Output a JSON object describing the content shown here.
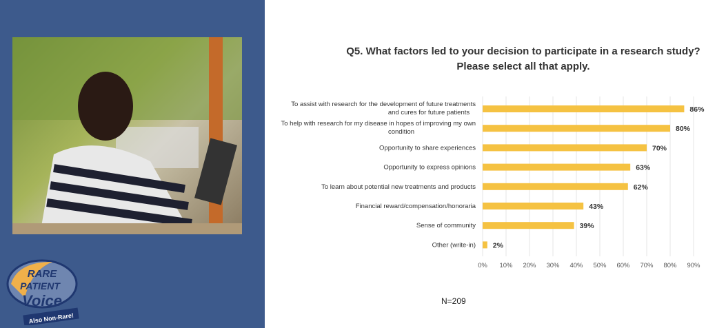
{
  "slide": {
    "title_line1": "Q5. What factors led to your decision to participate in a research study?",
    "title_line2": "Please select all that apply.",
    "sample_size": "N=209"
  },
  "logo": {
    "text": "RARE PATIENT Voice",
    "tagline": "Also Non-Rare!"
  },
  "colors": {
    "background": "#3d5a8c",
    "bar": "#f5c242"
  },
  "chart_data": {
    "type": "bar",
    "orientation": "horizontal",
    "title": "Q5. What factors led to your decision to participate in a research study? Please select all that apply.",
    "categories": [
      [
        "To assist with research for the development of future treatments",
        "and cures for future patients"
      ],
      [
        "To help with research for my disease in hopes of improving my own",
        "condition"
      ],
      [
        "Opportunity to share experiences"
      ],
      [
        "Opportunity to express opinions"
      ],
      [
        "To learn about potential new treatments and products"
      ],
      [
        "Financial reward/compensation/honoraria"
      ],
      [
        "Sense of community"
      ],
      [
        "Other (write-in)"
      ]
    ],
    "values": [
      86,
      80,
      70,
      63,
      62,
      43,
      39,
      2
    ],
    "data_labels": [
      "86%",
      "80%",
      "70%",
      "63%",
      "62%",
      "43%",
      "39%",
      "2%"
    ],
    "xlim": [
      0,
      90
    ],
    "xticks": [
      "0%",
      "10%",
      "20%",
      "30%",
      "40%",
      "50%",
      "60%",
      "70%",
      "80%",
      "90%"
    ],
    "grid": true
  }
}
